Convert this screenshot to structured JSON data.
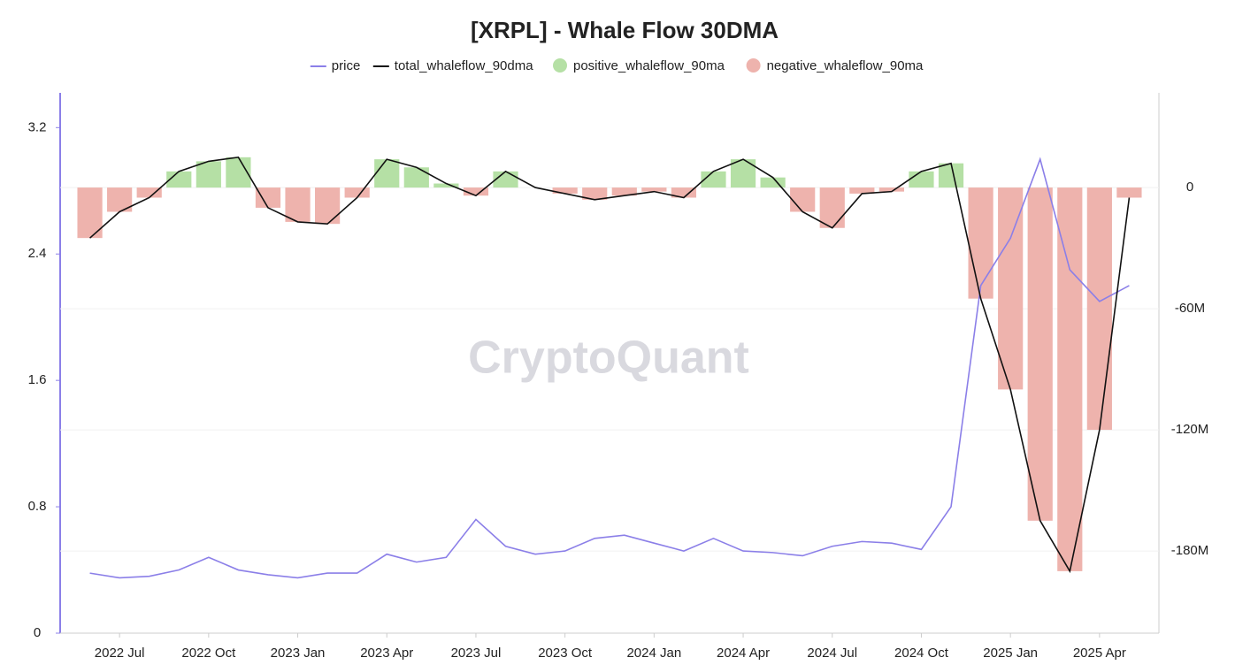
{
  "chart_data": {
    "type": "combo",
    "title": "[XRPL] - Whale Flow 30DMA",
    "watermark": "CryptoQuant",
    "x": [
      "2022-06",
      "2022-07",
      "2022-08",
      "2022-09",
      "2022-10",
      "2022-11",
      "2022-12",
      "2023-01",
      "2023-02",
      "2023-03",
      "2023-04",
      "2023-05",
      "2023-06",
      "2023-07",
      "2023-08",
      "2023-09",
      "2023-10",
      "2023-11",
      "2023-12",
      "2024-01",
      "2024-02",
      "2024-03",
      "2024-04",
      "2024-05",
      "2024-06",
      "2024-07",
      "2024-08",
      "2024-09",
      "2024-10",
      "2024-11",
      "2024-12",
      "2025-01",
      "2025-02",
      "2025-03",
      "2025-04",
      "2025-05"
    ],
    "xlim": [
      "2022-05",
      "2025-06"
    ],
    "xticks": [
      {
        "value": "2022-07",
        "label": "2022 Jul"
      },
      {
        "value": "2022-10",
        "label": "2022 Oct"
      },
      {
        "value": "2023-01",
        "label": "2023 Jan"
      },
      {
        "value": "2023-04",
        "label": "2023 Apr"
      },
      {
        "value": "2023-07",
        "label": "2023 Jul"
      },
      {
        "value": "2023-10",
        "label": "2023 Oct"
      },
      {
        "value": "2024-01",
        "label": "2024 Jan"
      },
      {
        "value": "2024-04",
        "label": "2024 Apr"
      },
      {
        "value": "2024-07",
        "label": "2024 Jul"
      },
      {
        "value": "2024-10",
        "label": "2024 Oct"
      },
      {
        "value": "2025-01",
        "label": "2025 Jan"
      },
      {
        "value": "2025-04",
        "label": "2025 Apr"
      }
    ],
    "ylim": [
      0,
      3.42
    ],
    "yticks": [
      0,
      0.8,
      1.6,
      2.4,
      3.2
    ],
    "y2lim": [
      -220700000,
      46900000
    ],
    "y2ticks": [
      {
        "value": 0,
        "label": "0"
      },
      {
        "value": -60000000,
        "label": "-60M"
      },
      {
        "value": -120000000,
        "label": "-120M"
      },
      {
        "value": -180000000,
        "label": "-180M"
      }
    ],
    "grid": true,
    "series": [
      {
        "name": "price",
        "kind": "line",
        "color": "#8b7fe8",
        "values": [
          0.38,
          0.35,
          0.36,
          0.4,
          0.48,
          0.4,
          0.37,
          0.35,
          0.38,
          0.38,
          0.5,
          0.45,
          0.48,
          0.72,
          0.55,
          0.5,
          0.52,
          0.6,
          0.62,
          0.57,
          0.52,
          0.6,
          0.52,
          0.51,
          0.49,
          0.55,
          0.58,
          0.57,
          0.53,
          0.8,
          2.2,
          2.5,
          3.0,
          2.3,
          2.1,
          2.2
        ]
      },
      {
        "name": "total_whaleflow_90dma",
        "kind": "line",
        "axis": "y2",
        "color": "#111111",
        "values": [
          -25000000,
          -12000000,
          -5000000,
          8000000,
          13000000,
          15000000,
          -10000000,
          -17000000,
          -18000000,
          -5000000,
          14000000,
          10000000,
          2000000,
          -4000000,
          8000000,
          0,
          -3000000,
          -6000000,
          -4000000,
          -2000000,
          -5000000,
          8000000,
          14000000,
          5000000,
          -12000000,
          -20000000,
          -3000000,
          -2000000,
          8000000,
          12000000,
          -55000000,
          -100000000,
          -165000000,
          -190000000,
          -120000000,
          -5000000
        ]
      },
      {
        "name": "positive_whaleflow_90ma",
        "kind": "bar",
        "axis": "y2",
        "color": "#b5e0a5",
        "values": [
          0,
          0,
          0,
          8000000,
          13000000,
          15000000,
          0,
          0,
          0,
          0,
          14000000,
          10000000,
          2000000,
          0,
          8000000,
          0,
          0,
          0,
          0,
          0,
          0,
          8000000,
          14000000,
          5000000,
          0,
          0,
          0,
          0,
          8000000,
          12000000,
          0,
          0,
          0,
          0,
          0,
          0
        ]
      },
      {
        "name": "negative_whaleflow_90ma",
        "kind": "bar",
        "axis": "y2",
        "color": "#eeb3ad",
        "values": [
          -25000000,
          -12000000,
          -5000000,
          0,
          0,
          0,
          -10000000,
          -17000000,
          -18000000,
          -5000000,
          0,
          0,
          0,
          -4000000,
          0,
          0,
          -3000000,
          -6000000,
          -4000000,
          -2000000,
          -5000000,
          0,
          0,
          0,
          -12000000,
          -20000000,
          -3000000,
          -2000000,
          0,
          0,
          -55000000,
          -100000000,
          -165000000,
          -190000000,
          -120000000,
          -5000000
        ]
      }
    ]
  }
}
